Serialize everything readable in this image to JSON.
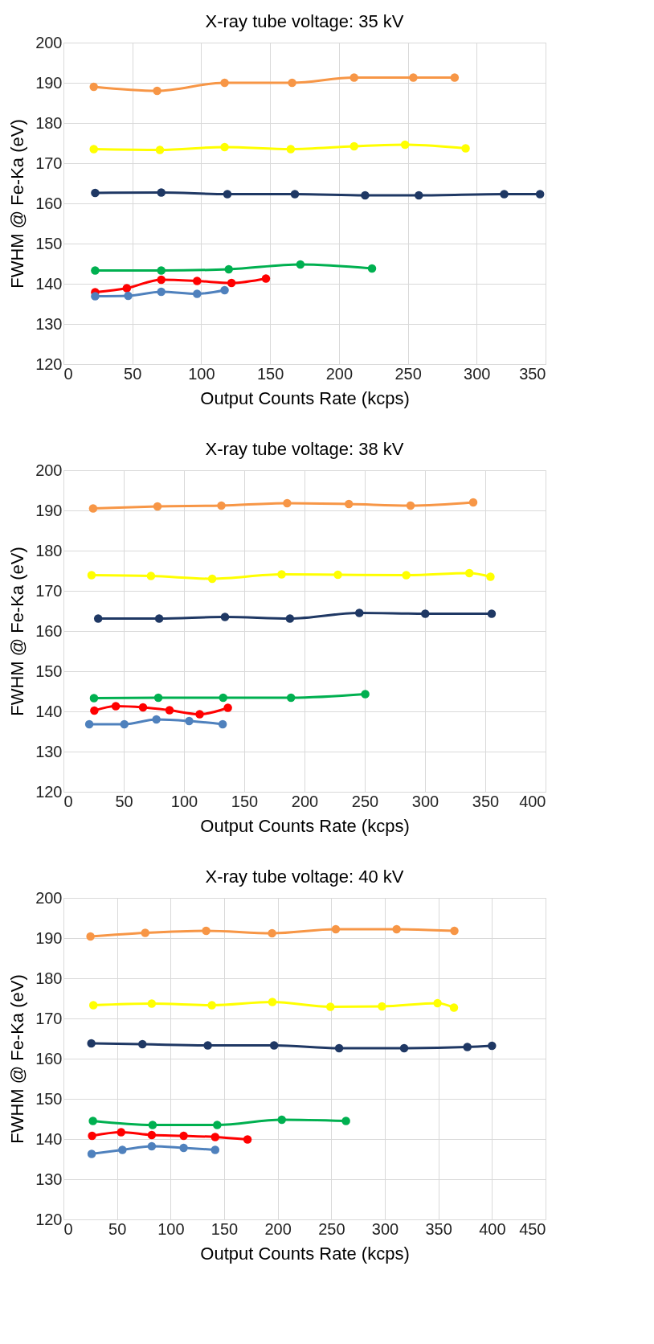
{
  "chart_data": [
    {
      "type": "line",
      "title": "X-ray tube voltage: 35 kV",
      "xlabel": "Output Counts Rate (kcps)",
      "ylabel": "FWHM @ Fe-Ka (eV)",
      "xlim": [
        0,
        350
      ],
      "xticks": [
        0,
        50,
        100,
        150,
        200,
        250,
        300,
        350
      ],
      "ylim": [
        120,
        200
      ],
      "yticks": [
        120,
        130,
        140,
        150,
        160,
        170,
        180,
        190,
        200
      ],
      "grid": true,
      "marker": "circle",
      "legend": false,
      "series": [
        {
          "color": "#f79646",
          "x": [
            22,
            68,
            117,
            166,
            211,
            254,
            284
          ],
          "values": [
            189,
            188,
            190,
            190,
            191.3,
            191.3,
            191.3
          ]
        },
        {
          "color": "#ffff00",
          "x": [
            22,
            70,
            117,
            165,
            211,
            248,
            292
          ],
          "values": [
            173.5,
            173.3,
            174,
            173.5,
            174.2,
            174.6,
            173.7
          ]
        },
        {
          "color": "#1f3864",
          "x": [
            23,
            71,
            119,
            168,
            219,
            258,
            320,
            346
          ],
          "values": [
            162.6,
            162.7,
            162.3,
            162.3,
            162,
            162,
            162.3,
            162.3
          ]
        },
        {
          "color": "#00b050",
          "x": [
            23,
            71,
            120,
            172,
            224
          ],
          "values": [
            143.3,
            143.3,
            143.6,
            144.8,
            143.8
          ]
        },
        {
          "color": "#ff0000",
          "x": [
            23,
            46,
            71,
            97,
            122,
            147
          ],
          "values": [
            137.9,
            138.9,
            141,
            140.7,
            140.2,
            141.3
          ]
        },
        {
          "color": "#4f81bd",
          "x": [
            23,
            47,
            71,
            97,
            117
          ],
          "values": [
            136.9,
            137,
            138,
            137.5,
            138.4
          ]
        }
      ]
    },
    {
      "type": "line",
      "title": "X-ray tube voltage: 38 kV",
      "xlabel": "Output Counts Rate (kcps)",
      "ylabel": "FWHM @ Fe-Ka (eV)",
      "xlim": [
        0,
        400
      ],
      "xticks": [
        0,
        50,
        100,
        150,
        200,
        250,
        300,
        350,
        400
      ],
      "ylim": [
        120,
        200
      ],
      "yticks": [
        120,
        130,
        140,
        150,
        160,
        170,
        180,
        190,
        200
      ],
      "grid": true,
      "marker": "circle",
      "legend": false,
      "series": [
        {
          "color": "#f79646",
          "x": [
            24.6,
            78,
            131,
            185.6,
            236.8,
            288,
            340
          ],
          "values": [
            190.5,
            191,
            191.2,
            191.8,
            191.6,
            191.2,
            192
          ]
        },
        {
          "color": "#ffff00",
          "x": [
            23.3,
            72.6,
            123.4,
            181,
            227.7,
            284.4,
            336.8,
            354.3
          ],
          "values": [
            173.9,
            173.7,
            173,
            174.1,
            174,
            173.9,
            174.4,
            173.5
          ]
        },
        {
          "color": "#1f3864",
          "x": [
            28.8,
            79.4,
            134,
            187.9,
            245.5,
            300.2,
            355.3
          ],
          "values": [
            163.1,
            163.1,
            163.5,
            163.1,
            164.5,
            164.3,
            164.3
          ]
        },
        {
          "color": "#00b050",
          "x": [
            25.3,
            78.7,
            132.5,
            188.8,
            250.4
          ],
          "values": [
            143.3,
            143.4,
            143.4,
            143.4,
            144.3
          ]
        },
        {
          "color": "#ff0000",
          "x": [
            25.6,
            43.4,
            66,
            88,
            113,
            136.4
          ],
          "values": [
            140.2,
            141.3,
            141,
            140.3,
            139.3,
            140.9
          ]
        },
        {
          "color": "#4f81bd",
          "x": [
            21.4,
            50.5,
            77.1,
            104.3,
            132.1
          ],
          "values": [
            136.8,
            136.8,
            138,
            137.6,
            136.8
          ]
        }
      ]
    },
    {
      "type": "line",
      "title": "X-ray tube voltage: 40 kV",
      "xlabel": "Output Counts Rate (kcps)",
      "ylabel": "FWHM @ Fe-Ka (eV)",
      "xlim": [
        0,
        450
      ],
      "xticks": [
        0,
        50,
        100,
        150,
        200,
        250,
        300,
        350,
        400,
        450
      ],
      "ylim": [
        120,
        200
      ],
      "yticks": [
        120,
        130,
        140,
        150,
        160,
        170,
        180,
        190,
        200
      ],
      "grid": true,
      "marker": "circle",
      "legend": false,
      "series": [
        {
          "color": "#f79646",
          "x": [
            25.2,
            76.3,
            133.2,
            194.7,
            254.2,
            311,
            364.9
          ],
          "values": [
            190.4,
            191.3,
            191.8,
            191.2,
            192.2,
            192.2,
            191.8
          ]
        },
        {
          "color": "#ffff00",
          "x": [
            27.9,
            82.4,
            138.5,
            195,
            249.2,
            297.3,
            349.2,
            364.5
          ],
          "values": [
            173.3,
            173.7,
            173.3,
            174.1,
            172.9,
            173,
            173.8,
            172.7
          ]
        },
        {
          "color": "#1f3864",
          "x": [
            26,
            73.7,
            134.7,
            196.6,
            257.3,
            318,
            377,
            400
          ],
          "values": [
            163.8,
            163.6,
            163.3,
            163.3,
            162.6,
            162.6,
            162.9,
            163.2
          ]
        },
        {
          "color": "#00b050",
          "x": [
            27.5,
            83.2,
            143.5,
            203.8,
            263.7
          ],
          "values": [
            144.5,
            143.5,
            143.5,
            144.8,
            144.5
          ]
        },
        {
          "color": "#ff0000",
          "x": [
            26.7,
            53.8,
            82.4,
            112.2,
            141.6,
            171.8
          ],
          "values": [
            140.8,
            141.7,
            141,
            140.8,
            140.5,
            139.9
          ]
        },
        {
          "color": "#4f81bd",
          "x": [
            26.3,
            55,
            82.4,
            112.2,
            141.6
          ],
          "values": [
            136.3,
            137.3,
            138.2,
            137.8,
            137.3
          ]
        }
      ]
    }
  ]
}
